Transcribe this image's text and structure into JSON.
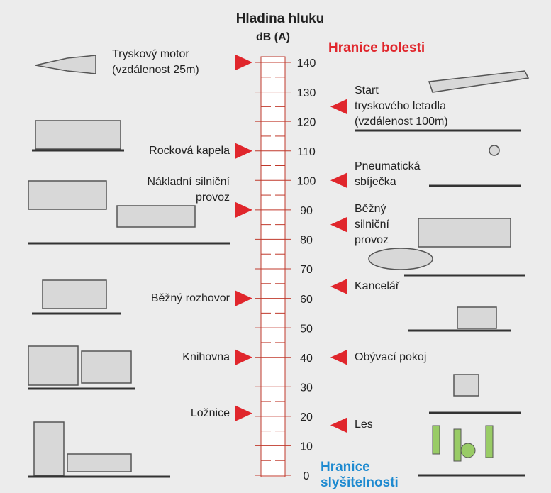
{
  "title": "Hladina hluku",
  "unit": "dB (A)",
  "pain_threshold": "Hranice bolesti",
  "hearing_threshold": "Hranice slyšitelnosti",
  "scale": {
    "min": 0,
    "max": 140,
    "ticks": [
      0,
      10,
      20,
      30,
      40,
      50,
      60,
      70,
      80,
      90,
      100,
      110,
      120,
      130,
      140
    ]
  },
  "left_items": [
    {
      "label": "Tryskový motor\n(vzdálenost 25m)",
      "level": 140
    },
    {
      "label": "Rocková kapela",
      "level": 110
    },
    {
      "label": "Nákladní silniční\nprovoz",
      "level": 90
    },
    {
      "label": "Běžný rozhovor",
      "level": 60
    },
    {
      "label": "Knihovna",
      "level": 40
    },
    {
      "label": "Ložnice",
      "level": 21
    }
  ],
  "right_items": [
    {
      "label": "Start\ntryskového letadla\n(vzdálenost 100m)",
      "level": 125
    },
    {
      "label": "Pneumatická\nsbíječka",
      "level": 100
    },
    {
      "label": "Běžný\nsilniční\nprovoz",
      "level": 85
    },
    {
      "label": "Kancelář",
      "level": 64
    },
    {
      "label": "Obývací pokoj",
      "level": 40
    },
    {
      "label": "Les",
      "level": 17
    }
  ]
}
